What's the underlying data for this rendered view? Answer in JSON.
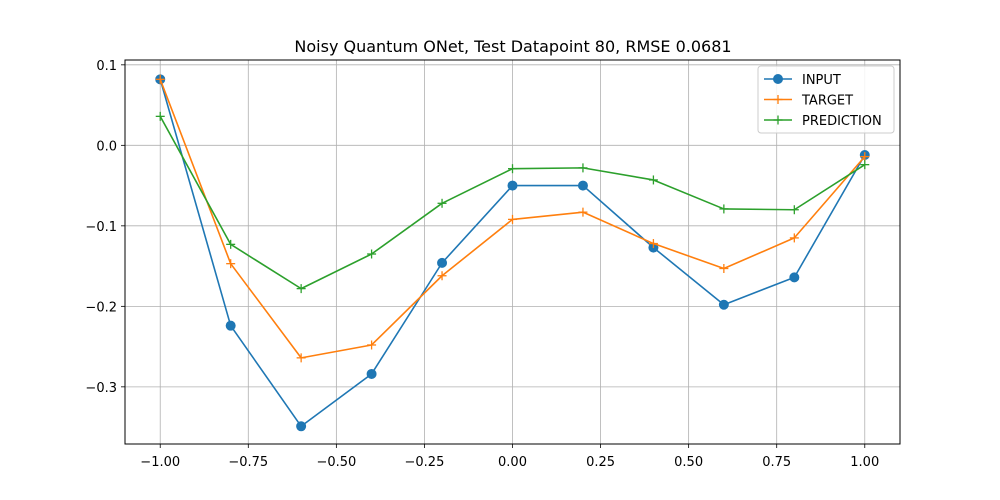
{
  "chart_data": {
    "type": "line",
    "title": "Noisy Quantum ONet, Test Datapoint 80, RMSE 0.0681",
    "xlabel": "",
    "ylabel": "",
    "xlim": [
      -1.1,
      1.1
    ],
    "ylim": [
      -0.371,
      0.106
    ],
    "x_ticks": [
      -1.0,
      -0.75,
      -0.5,
      -0.25,
      0.0,
      0.25,
      0.5,
      0.75,
      1.0
    ],
    "x_tick_labels": [
      "−1.00",
      "−0.75",
      "−0.50",
      "−0.25",
      "0.00",
      "0.25",
      "0.50",
      "0.75",
      "1.00"
    ],
    "y_ticks": [
      0.1,
      0.0,
      -0.1,
      -0.2,
      -0.3
    ],
    "y_tick_labels": [
      "0.1",
      "0.0",
      "−0.1",
      "−0.2",
      "−0.3"
    ],
    "grid": true,
    "legend_position": "top-right",
    "x": [
      -1.0,
      -0.8,
      -0.6,
      -0.4,
      -0.2,
      0.0,
      0.2,
      0.4,
      0.6,
      0.8,
      1.0
    ],
    "series": [
      {
        "name": "INPUT",
        "color": "#1f77b4",
        "marker": "circle",
        "values": [
          0.082,
          -0.224,
          -0.349,
          -0.284,
          -0.146,
          -0.05,
          -0.05,
          -0.127,
          -0.198,
          -0.164,
          -0.012
        ]
      },
      {
        "name": "TARGET",
        "color": "#ff7f0e",
        "marker": "plus",
        "values": [
          0.082,
          -0.147,
          -0.264,
          -0.248,
          -0.162,
          -0.092,
          -0.083,
          -0.122,
          -0.153,
          -0.115,
          -0.014
        ]
      },
      {
        "name": "PREDICTION",
        "color": "#2ca02c",
        "marker": "plus",
        "values": [
          0.036,
          -0.123,
          -0.178,
          -0.135,
          -0.072,
          -0.029,
          -0.028,
          -0.043,
          -0.079,
          -0.08,
          -0.024
        ]
      }
    ]
  }
}
